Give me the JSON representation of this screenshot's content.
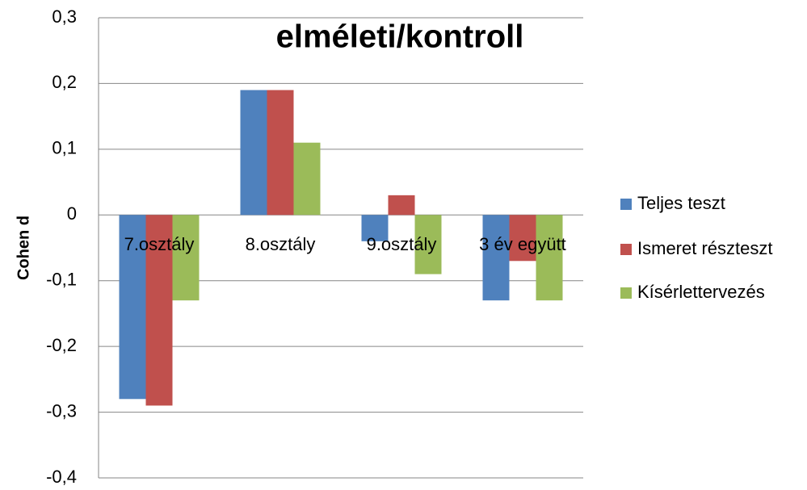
{
  "chart_data": {
    "type": "bar",
    "title": "elméleti/kontroll",
    "y_label": "Cohen d",
    "categories": [
      "7.osztály",
      "8.osztály",
      "9.osztály",
      "3 év együtt"
    ],
    "series": [
      {
        "name": "Teljes teszt",
        "color": "#4f81bd",
        "values": [
          -0.28,
          0.19,
          -0.04,
          -0.13
        ]
      },
      {
        "name": "Ismeret részteszt",
        "color": "#c0504d",
        "values": [
          -0.29,
          0.19,
          0.03,
          -0.07
        ]
      },
      {
        "name": "Kísérlettervezés",
        "color": "#9bbb59",
        "values": [
          -0.13,
          0.11,
          -0.09,
          -0.13
        ]
      }
    ],
    "ylim": [
      -0.4,
      0.3
    ],
    "yticks": [
      {
        "value": -0.4,
        "label": "-0,4"
      },
      {
        "value": -0.3,
        "label": "-0,3"
      },
      {
        "value": -0.2,
        "label": "-0,2"
      },
      {
        "value": -0.1,
        "label": "-0,1"
      },
      0,
      {
        "value": 0.1,
        "label": "0,1"
      },
      {
        "value": 0.2,
        "label": "0,2"
      },
      {
        "value": 0.3,
        "label": "0,3"
      }
    ],
    "grid": true,
    "legend": "right"
  }
}
